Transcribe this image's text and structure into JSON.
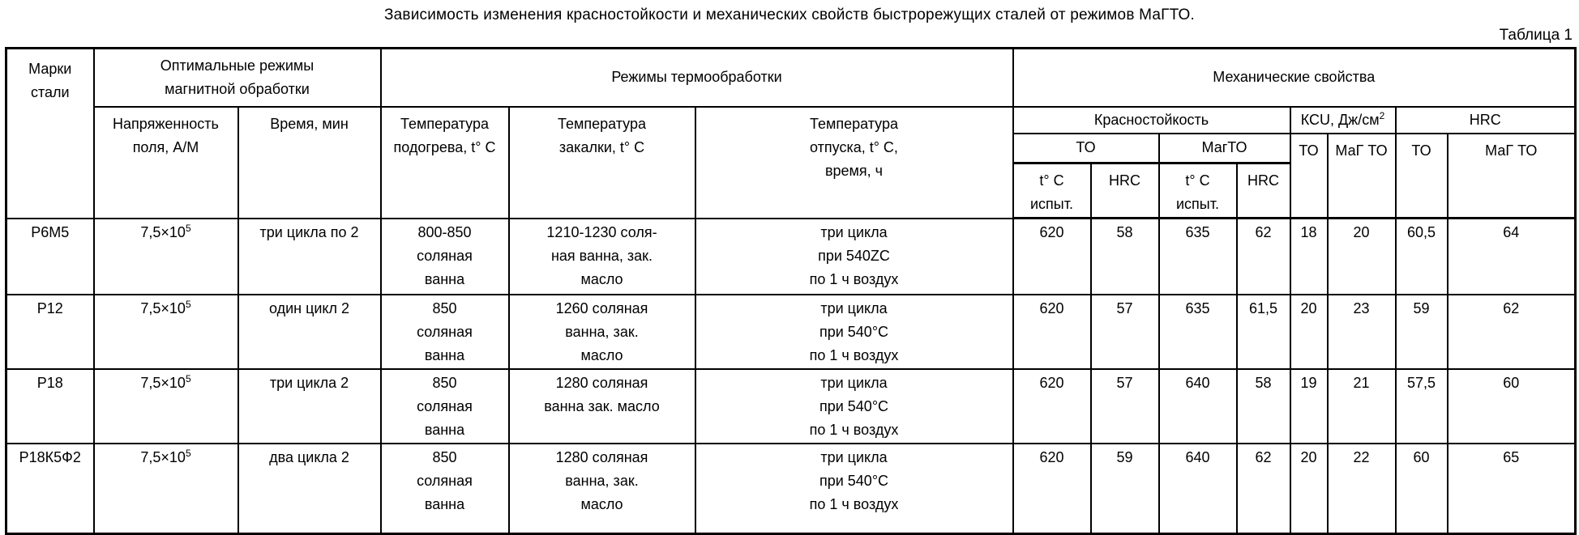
{
  "title": "Зависимость изменения красностойкости и механических свойств быстрорежущих сталей от режимов МаГТО.",
  "table_label": "Таблица 1",
  "header": {
    "steel_grade": "Марки\nстали",
    "magnetic_section": "Оптимальные режимы\nмагнитной обработки",
    "field_strength": "Напряженность\nполя, А/М",
    "time": "Время, мин",
    "heat_section": "Режимы термообработки",
    "preheat": "Температура\nподогрева, t° С",
    "quench": "Температура\nзакалки, t° С",
    "temper": "Температура\nотпуска, t° С,\nвремя, ч",
    "mech_section": "Механические свойства",
    "red_hardness": "Красностойкость",
    "kcu_base": "КСU, Дж/см",
    "kcu_exp": "2",
    "hrc_group": "HRC",
    "to": "ТО",
    "magto": "МагТО",
    "mag_to": "МаГ ТО",
    "t_test": "t° С\nиспыт.",
    "hrc": "HRC"
  },
  "rows": [
    {
      "grade": "Р6М5",
      "field_base": "7,5×10",
      "field_exp": "5",
      "time": "три цикла по 2",
      "preheat": "800-850\nсоляная\nванна",
      "quench": "1210-1230 соля-\nная ванна, зак.\nмасло",
      "temper": "три цикла\nпри 540ZC\nпо 1 ч воздух",
      "red_to_temp": "620",
      "red_to_hrc": "58",
      "red_mag_temp": "635",
      "red_mag_hrc": "62",
      "kcu_to": "18",
      "kcu_mag": "20",
      "hrc_to": "60,5",
      "hrc_mag": "64"
    },
    {
      "grade": "Р12",
      "field_base": "7,5×10",
      "field_exp": "5",
      "time": "один цикл 2",
      "preheat": "850\nсоляная\nванна",
      "quench": "1260 соляная\nванна, зак.\nмасло",
      "temper": "три цикла\nпри 540°С\nпо 1 ч воздух",
      "red_to_temp": "620",
      "red_to_hrc": "57",
      "red_mag_temp": "635",
      "red_mag_hrc": "61,5",
      "kcu_to": "20",
      "kcu_mag": "23",
      "hrc_to": "59",
      "hrc_mag": "62"
    },
    {
      "grade": "Р18",
      "field_base": "7,5×10",
      "field_exp": "5",
      "time": "три цикла 2",
      "preheat": "850\nсоляная\nванна",
      "quench": "1280 соляная\nванна зак. масло",
      "temper": "три цикла\nпри 540°С\nпо 1 ч воздух",
      "red_to_temp": "620",
      "red_to_hrc": "57",
      "red_mag_temp": "640",
      "red_mag_hrc": "58",
      "kcu_to": "19",
      "kcu_mag": "21",
      "hrc_to": "57,5",
      "hrc_mag": "60"
    },
    {
      "grade": "Р18К5Ф2",
      "field_base": "7,5×10",
      "field_exp": "5",
      "time": "два цикла 2",
      "preheat": "850\nсоляная\nванна",
      "quench": "1280 соляная\nванна, зак.\nмасло",
      "temper": "три цикла\nпри 540°С\nпо 1 ч воздух",
      "red_to_temp": "620",
      "red_to_hrc": "59",
      "red_mag_temp": "640",
      "red_mag_hrc": "62",
      "kcu_to": "20",
      "kcu_mag": "22",
      "hrc_to": "60",
      "hrc_mag": "65"
    }
  ]
}
